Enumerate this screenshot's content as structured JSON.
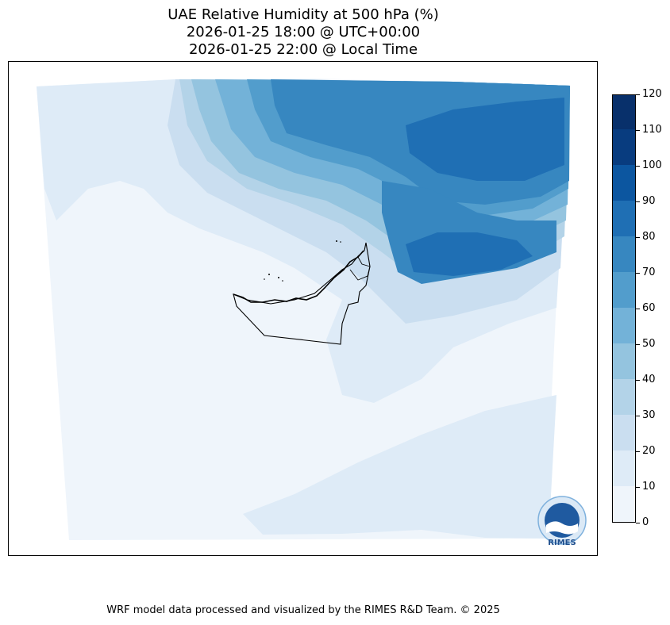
{
  "title_lines": [
    "UAE Relative Humidity at 500 hPa (%)",
    "2026-01-25 18:00 @ UTC+00:00",
    "2026-01-25 22:00 @ Local Time"
  ],
  "colorbar": {
    "ticks": [
      0,
      10,
      20,
      30,
      40,
      50,
      60,
      70,
      80,
      90,
      100,
      110,
      120
    ],
    "colors": [
      "#eff5fb",
      "#deebf7",
      "#cadef0",
      "#b3d3e8",
      "#94c4df",
      "#73b2d8",
      "#529dcc",
      "#3787c0",
      "#1f6fb4",
      "#0c56a0",
      "#083c7f",
      "#08306b"
    ]
  },
  "footer": "WRF model data processed and visualized by the RIMES R&D Team. © 2025",
  "logo": {
    "text": "RIMES"
  }
}
